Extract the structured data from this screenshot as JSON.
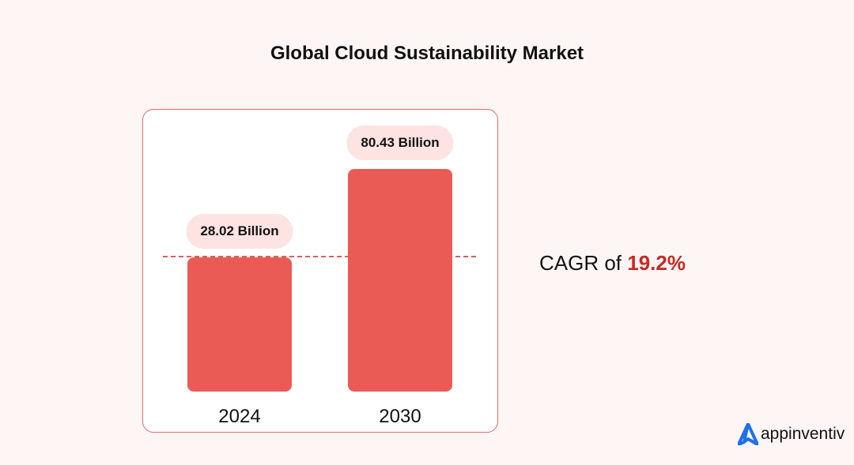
{
  "chart_data": {
    "type": "bar",
    "title": "Global Cloud Sustainability Market",
    "categories": [
      "2024",
      "2030"
    ],
    "values": [
      28.02,
      80.43
    ],
    "value_labels": [
      "28.02 Billion",
      "80.43 Billion"
    ],
    "unit": "Billion",
    "bar_color": "#eb5b56",
    "reference_line": "dashed at 2024 value",
    "annotation": {
      "prefix": "CAGR of ",
      "value": "19.2%",
      "value_color": "#c62a22"
    },
    "grid": false
  },
  "brand": {
    "name": "appinventiv",
    "color": "#1f6ff0"
  }
}
